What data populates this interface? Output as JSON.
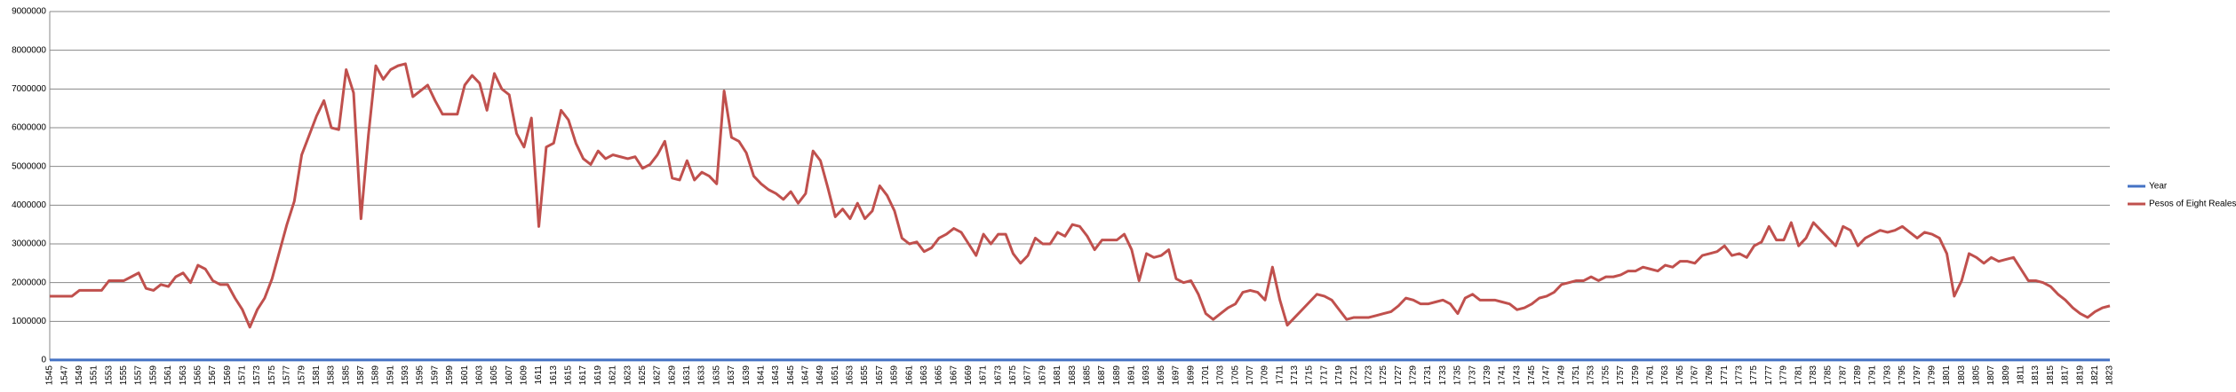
{
  "chart_data": {
    "type": "line",
    "categories": [
      "1545",
      null,
      "1547",
      null,
      "1549",
      null,
      "1551",
      null,
      "1553",
      null,
      "1555",
      null,
      "1557",
      null,
      "1559",
      null,
      "1561",
      null,
      "1563",
      null,
      "1565",
      null,
      "1567",
      null,
      "1569",
      null,
      "1571",
      null,
      "1573",
      null,
      "1575",
      null,
      "1577",
      null,
      "1579",
      null,
      "1581",
      null,
      "1583",
      null,
      "1585",
      null,
      "1587",
      null,
      "1589",
      null,
      "1591",
      null,
      "1593",
      null,
      "1595",
      null,
      "1597",
      null,
      "1599",
      null,
      "1601",
      null,
      "1603",
      null,
      "1605",
      null,
      "1607",
      null,
      "1609",
      null,
      "1611",
      null,
      "1613",
      null,
      "1615",
      null,
      "1617",
      null,
      "1619",
      null,
      "1621",
      null,
      "1623",
      null,
      "1625",
      null,
      "1627",
      null,
      "1629",
      null,
      "1631",
      null,
      "1633",
      null,
      "1635",
      null,
      "1637",
      null,
      "1639",
      null,
      "1641",
      null,
      "1643",
      null,
      "1645",
      null,
      "1647",
      null,
      "1649",
      null,
      "1651",
      null,
      "1653",
      null,
      "1655",
      null,
      "1657",
      null,
      "1659",
      null,
      "1661",
      null,
      "1663",
      null,
      "1665",
      null,
      "1667",
      null,
      "1669",
      null,
      "1671",
      null,
      "1673",
      null,
      "1675",
      null,
      "1677",
      null,
      "1679",
      null,
      "1681",
      null,
      "1683",
      null,
      "1685",
      null,
      "1687",
      null,
      "1689",
      null,
      "1691",
      null,
      "1693",
      null,
      "1695",
      null,
      "1697",
      null,
      "1699",
      null,
      "1701",
      null,
      "1703",
      null,
      "1705",
      null,
      "1707",
      null,
      "1709",
      null,
      "1711",
      null,
      "1713",
      null,
      "1715",
      null,
      "1717",
      null,
      "1719",
      null,
      "1721",
      null,
      "1723",
      null,
      "1725",
      null,
      "1727",
      null,
      "1729",
      null,
      "1731",
      null,
      "1733",
      null,
      "1735",
      null,
      "1737",
      null,
      "1739",
      null,
      "1741",
      null,
      "1743",
      null,
      "1745",
      null,
      "1747",
      null,
      "1749",
      null,
      "1751",
      null,
      "1753",
      null,
      "1755",
      null,
      "1757",
      null,
      "1759",
      null,
      "1761",
      null,
      "1763",
      null,
      "1765",
      null,
      "1767",
      null,
      "1769",
      null,
      "1771",
      null,
      "1773",
      null,
      "1775",
      null,
      "1777",
      null,
      "1779",
      null,
      "1781",
      null,
      "1783",
      null,
      "1785",
      null,
      "1787",
      null,
      "1789",
      null,
      "1791",
      null,
      "1793",
      null,
      "1795",
      null,
      "1797",
      null,
      "1799",
      null,
      "1801",
      null,
      "1803",
      null,
      "1805",
      null,
      "1807",
      null,
      "1809",
      null,
      "1811",
      null,
      "1813",
      null,
      "1815",
      null,
      "1817",
      null,
      "1819",
      null,
      "1821",
      null,
      "1823"
    ],
    "series": [
      {
        "name": "Year",
        "color": "#4472c4",
        "values": [
          1545,
          1546,
          1547,
          1548,
          1549,
          1550,
          1551,
          1552,
          1553,
          1554,
          1555,
          1556,
          1557,
          1558,
          1559,
          1560,
          1561,
          1562,
          1563,
          1564,
          1565,
          1566,
          1567,
          1568,
          1569,
          1570,
          1571,
          1572,
          1573,
          1574,
          1575,
          1576,
          1577,
          1578,
          1579,
          1580,
          1581,
          1582,
          1583,
          1584,
          1585,
          1586,
          1587,
          1588,
          1589,
          1590,
          1591,
          1592,
          1593,
          1594,
          1595,
          1596,
          1597,
          1598,
          1599,
          1600,
          1601,
          1602,
          1603,
          1604,
          1605,
          1606,
          1607,
          1608,
          1609,
          1610,
          1611,
          1612,
          1613,
          1614,
          1615,
          1616,
          1617,
          1618,
          1619,
          1620,
          1621,
          1622,
          1623,
          1624,
          1625,
          1626,
          1627,
          1628,
          1629,
          1630,
          1631,
          1632,
          1633,
          1634,
          1635,
          1636,
          1637,
          1638,
          1639,
          1640,
          1641,
          1642,
          1643,
          1644,
          1645,
          1646,
          1647,
          1648,
          1649,
          1650,
          1651,
          1652,
          1653,
          1654,
          1655,
          1656,
          1657,
          1658,
          1659,
          1660,
          1661,
          1662,
          1663,
          1664,
          1665,
          1666,
          1667,
          1668,
          1669,
          1670,
          1671,
          1672,
          1673,
          1674,
          1675,
          1676,
          1677,
          1678,
          1679,
          1680,
          1681,
          1682,
          1683,
          1684,
          1685,
          1686,
          1687,
          1688,
          1689,
          1690,
          1691,
          1692,
          1693,
          1694,
          1695,
          1696,
          1697,
          1698,
          1699,
          1700,
          1701,
          1702,
          1703,
          1704,
          1705,
          1706,
          1707,
          1708,
          1709,
          1710,
          1711,
          1712,
          1713,
          1714,
          1715,
          1716,
          1717,
          1718,
          1719,
          1720,
          1721,
          1722,
          1723,
          1724,
          1725,
          1726,
          1727,
          1728,
          1729,
          1730,
          1731,
          1732,
          1733,
          1734,
          1735,
          1736,
          1737,
          1738,
          1739,
          1740,
          1741,
          1742,
          1743,
          1744,
          1745,
          1746,
          1747,
          1748,
          1749,
          1750,
          1751,
          1752,
          1753,
          1754,
          1755,
          1756,
          1757,
          1758,
          1759,
          1760,
          1761,
          1762,
          1763,
          1764,
          1765,
          1766,
          1767,
          1768,
          1769,
          1770,
          1771,
          1772,
          1773,
          1774,
          1775,
          1776,
          1777,
          1778,
          1779,
          1780,
          1781,
          1782,
          1783,
          1784,
          1785,
          1786,
          1787,
          1788,
          1789,
          1790,
          1791,
          1792,
          1793,
          1794,
          1795,
          1796,
          1797,
          1798,
          1799,
          1800,
          1801,
          1802,
          1803,
          1804,
          1805,
          1806,
          1807,
          1808,
          1809,
          1810,
          1811,
          1812,
          1813,
          1814,
          1815,
          1816,
          1817,
          1818,
          1819,
          1820,
          1821,
          1822,
          1823
        ]
      },
      {
        "name": "Pesos of Eight Reales",
        "color": "#c0504d",
        "values": [
          1650000,
          1650000,
          1650000,
          1650000,
          1800000,
          1800000,
          1800000,
          1800000,
          2050000,
          2050000,
          2050000,
          2150000,
          2250000,
          1850000,
          1800000,
          1950000,
          1900000,
          2150000,
          2250000,
          2000000,
          2450000,
          2350000,
          2050000,
          1950000,
          1950000,
          1600000,
          1300000,
          850000,
          1300000,
          1600000,
          2100000,
          2800000,
          3500000,
          4100000,
          5300000,
          5800000,
          6300000,
          6700000,
          6000000,
          5950000,
          7500000,
          6900000,
          3650000,
          5800000,
          7600000,
          7250000,
          7500000,
          7600000,
          7650000,
          6800000,
          6950000,
          7100000,
          6700000,
          6350000,
          6350000,
          6350000,
          7100000,
          7350000,
          7150000,
          6450000,
          7400000,
          7000000,
          6850000,
          5850000,
          5500000,
          6250000,
          3450000,
          5500000,
          5600000,
          6450000,
          6200000,
          5600000,
          5200000,
          5050000,
          5400000,
          5200000,
          5300000,
          5250000,
          5200000,
          5250000,
          4950000,
          5050000,
          5300000,
          5650000,
          4700000,
          4650000,
          5150000,
          4650000,
          4850000,
          4750000,
          4550000,
          6950000,
          5750000,
          5650000,
          5350000,
          4750000,
          4550000,
          4400000,
          4300000,
          4150000,
          4350000,
          4050000,
          4300000,
          5400000,
          5150000,
          4450000,
          3700000,
          3900000,
          3650000,
          4050000,
          3650000,
          3850000,
          4500000,
          4250000,
          3850000,
          3150000,
          3000000,
          3050000,
          2800000,
          2900000,
          3150000,
          3250000,
          3400000,
          3300000,
          3000000,
          2700000,
          3250000,
          3000000,
          3250000,
          3250000,
          2750000,
          2500000,
          2700000,
          3150000,
          3000000,
          3000000,
          3300000,
          3200000,
          3500000,
          3450000,
          3200000,
          2850000,
          3100000,
          3100000,
          3100000,
          3250000,
          2850000,
          2050000,
          2750000,
          2650000,
          2700000,
          2850000,
          2100000,
          2000000,
          2050000,
          1700000,
          1200000,
          1050000,
          1200000,
          1350000,
          1450000,
          1750000,
          1800000,
          1750000,
          1550000,
          2400000,
          1550000,
          900000,
          1100000,
          1300000,
          1500000,
          1700000,
          1650000,
          1550000,
          1300000,
          1050000,
          1100000,
          1100000,
          1100000,
          1150000,
          1200000,
          1250000,
          1400000,
          1600000,
          1550000,
          1450000,
          1450000,
          1500000,
          1550000,
          1450000,
          1200000,
          1600000,
          1700000,
          1550000,
          1550000,
          1550000,
          1500000,
          1450000,
          1300000,
          1350000,
          1450000,
          1600000,
          1650000,
          1750000,
          1950000,
          2000000,
          2050000,
          2050000,
          2150000,
          2050000,
          2150000,
          2150000,
          2200000,
          2300000,
          2300000,
          2400000,
          2350000,
          2300000,
          2450000,
          2400000,
          2550000,
          2550000,
          2500000,
          2700000,
          2750000,
          2800000,
          2950000,
          2700000,
          2750000,
          2650000,
          2950000,
          3050000,
          3450000,
          3100000,
          3100000,
          3550000,
          2950000,
          3150000,
          3550000,
          3350000,
          3150000,
          2950000,
          3450000,
          3350000,
          2950000,
          3150000,
          3250000,
          3350000,
          3300000,
          3350000,
          3450000,
          3300000,
          3150000,
          3300000,
          3250000,
          3150000,
          2750000,
          1650000,
          2050000,
          2750000,
          2650000,
          2500000,
          2650000,
          2550000,
          2600000,
          2650000,
          2350000,
          2050000,
          2050000,
          2000000,
          1900000,
          1700000,
          1550000,
          1350000,
          1200000,
          1100000,
          1250000,
          1350000,
          1400000
        ]
      }
    ],
    "ylim": [
      0,
      9000000
    ],
    "yticks": [
      0,
      1000000,
      2000000,
      3000000,
      4000000,
      5000000,
      6000000,
      7000000,
      8000000,
      9000000
    ],
    "grid": true,
    "legend": "right"
  }
}
